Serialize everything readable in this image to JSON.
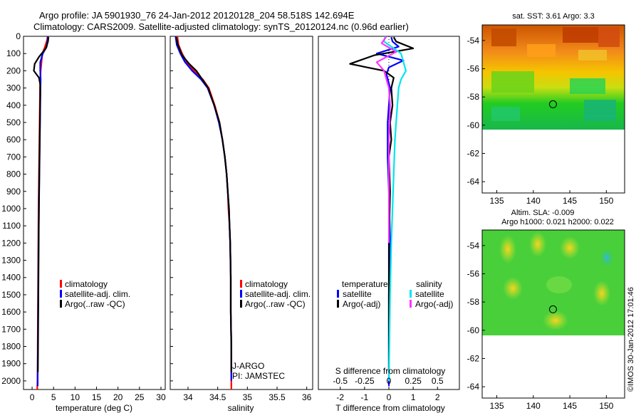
{
  "header": {
    "line1": "Argo profile: JA 5901930_76 24-Jan-2012 20120128_204 58.518S 142.694E",
    "line2": "Climatology: CARS2009. Satellite-adjusted climatology: synTS_20120124.nc (0.96d earlier)"
  },
  "colors": {
    "climatology": "#ff0000",
    "satellite": "#0000ff",
    "argo": "#000000",
    "salinity_satellite": "#00e5ee",
    "salinity_argo": "#ff33ff"
  },
  "chart_data": [
    {
      "type": "line",
      "name": "temperature-profile",
      "xlabel": "temperature (deg C)",
      "ylabel": "",
      "xlim": [
        -2,
        31
      ],
      "ylim": [
        2050,
        0
      ],
      "xticks": [
        "0",
        "5",
        "10",
        "15",
        "20",
        "25",
        "30"
      ],
      "xtick_values": [
        0,
        5,
        10,
        15,
        20,
        25,
        30
      ],
      "yticks": [
        "0",
        "100",
        "200",
        "300",
        "400",
        "500",
        "600",
        "700",
        "800",
        "900",
        "1000",
        "1100",
        "1200",
        "1300",
        "1400",
        "1500",
        "1600",
        "1700",
        "1800",
        "1900",
        "2000"
      ],
      "ytick_values": [
        0,
        100,
        200,
        300,
        400,
        500,
        600,
        700,
        800,
        900,
        1000,
        1100,
        1200,
        1300,
        1400,
        1500,
        1600,
        1700,
        1800,
        1900,
        2000
      ],
      "legend": [
        "climatology",
        "satellite-adj. clim.",
        "Argo(..raw -QC)"
      ],
      "series": [
        {
          "name": "climatology",
          "color": "#ff0000",
          "x": [
            3.6,
            3.5,
            3.0,
            2.4,
            2.2,
            2.0,
            1.9,
            1.85,
            1.8,
            1.75,
            1.7,
            1.65,
            1.6,
            1.5,
            1.45,
            1.4,
            1.35,
            1.3,
            1.3,
            1.25,
            1.2,
            1.2
          ],
          "y": [
            0,
            20,
            60,
            100,
            150,
            200,
            250,
            300,
            400,
            500,
            600,
            700,
            800,
            1000,
            1200,
            1400,
            1600,
            1800,
            1900,
            2000,
            2040,
            2050
          ]
        },
        {
          "name": "satellite-adj. clim.",
          "color": "#0000ff",
          "x": [
            3.7,
            3.6,
            3.4,
            2.5,
            1.9,
            1.9,
            2.0,
            1.95,
            1.9,
            1.85,
            1.8,
            1.75,
            1.7,
            1.6,
            1.5,
            1.45,
            1.4,
            1.35,
            1.3,
            1.3,
            1.3
          ],
          "y": [
            0,
            20,
            60,
            100,
            150,
            200,
            250,
            300,
            400,
            500,
            600,
            700,
            800,
            1000,
            1200,
            1400,
            1600,
            1800,
            1900,
            2000,
            2030
          ]
        },
        {
          "name": "Argo",
          "color": "#000000",
          "x": [
            3.8,
            3.7,
            3.2,
            1.6,
            0.6,
            0.4,
            1.6,
            1.9,
            1.9,
            1.85,
            1.8,
            1.75,
            1.7,
            1.6,
            1.55,
            1.5,
            1.45,
            1.4,
            1.35
          ],
          "y": [
            5,
            30,
            70,
            120,
            160,
            200,
            240,
            280,
            350,
            450,
            550,
            650,
            750,
            950,
            1150,
            1350,
            1550,
            1750,
            1950
          ]
        }
      ]
    },
    {
      "type": "line",
      "name": "salinity-profile",
      "xlabel": "salinity",
      "ylabel": "",
      "xlim": [
        33.7,
        36.1
      ],
      "ylim": [
        2050,
        0
      ],
      "xticks": [
        "34",
        "34.5",
        "35",
        "35.5",
        "36"
      ],
      "xtick_values": [
        34,
        34.5,
        35,
        35.5,
        36
      ],
      "legend": [
        "climatology",
        "satellite-adj. clim.",
        "Argo(..raw -QC)"
      ],
      "annotations": [
        "J-ARGO",
        "PI: JAMSTEC"
      ],
      "series": [
        {
          "name": "climatology",
          "color": "#ff0000",
          "x": [
            33.82,
            33.84,
            33.9,
            33.98,
            34.1,
            34.25,
            34.35,
            34.45,
            34.53,
            34.58,
            34.62,
            34.65,
            34.67,
            34.68,
            34.7,
            34.71,
            34.72,
            34.72,
            34.73,
            34.73,
            34.73
          ],
          "y": [
            0,
            50,
            100,
            150,
            200,
            250,
            300,
            400,
            500,
            600,
            700,
            800,
            900,
            1000,
            1100,
            1200,
            1400,
            1600,
            1800,
            2000,
            2050
          ]
        },
        {
          "name": "satellite-adj. clim.",
          "color": "#0000ff",
          "x": [
            33.79,
            33.81,
            33.87,
            33.95,
            34.07,
            34.22,
            34.33,
            34.44,
            34.52,
            34.58,
            34.62,
            34.65,
            34.67,
            34.69,
            34.7,
            34.71,
            34.72,
            34.72,
            34.73,
            34.73
          ],
          "y": [
            0,
            50,
            100,
            150,
            200,
            250,
            300,
            400,
            500,
            600,
            700,
            800,
            900,
            1000,
            1100,
            1200,
            1400,
            1600,
            1800,
            2000
          ]
        },
        {
          "name": "Argo",
          "color": "#000000",
          "x": [
            33.8,
            33.83,
            33.9,
            34.02,
            34.14,
            34.24,
            34.34,
            34.44,
            34.53,
            34.58,
            34.62,
            34.65,
            34.67,
            34.69,
            34.7,
            34.71,
            34.72,
            34.72,
            34.73,
            34.73
          ],
          "y": [
            5,
            50,
            110,
            160,
            200,
            250,
            300,
            400,
            500,
            600,
            700,
            800,
            900,
            1000,
            1100,
            1200,
            1400,
            1600,
            1800,
            1950
          ]
        }
      ]
    },
    {
      "type": "line",
      "name": "difference-profile",
      "xlabel": "T difference from climatology",
      "top_xlabel": "S difference from climatology",
      "xlim": [
        -2.9,
        2.9
      ],
      "ylim": [
        2050,
        0
      ],
      "xticks": [
        "-2",
        "-1",
        "0",
        "1",
        "2"
      ],
      "xtick_values": [
        -2,
        -1,
        0,
        1,
        2
      ],
      "top_xticks": [
        "-0.5",
        "-0.25",
        "0",
        "0.25",
        "0.5"
      ],
      "top_xtick_positions": [
        -2,
        -1,
        0,
        1,
        2
      ],
      "legend_titles": [
        "temperature",
        "salinity"
      ],
      "legend": [
        "satellite",
        "Argo(-adj)",
        "satellite",
        "Argo(-adj)"
      ],
      "series": [
        {
          "name": "T satellite",
          "color": "#0000ff",
          "x": [
            0.1,
            0.15,
            0.4,
            -0.5,
            0.6,
            0.0,
            -0.1,
            0.05,
            0.0,
            -0.05,
            -0.05,
            0.0,
            0.05,
            0.0,
            0.0,
            0.0
          ],
          "y": [
            5,
            30,
            60,
            100,
            140,
            180,
            220,
            300,
            400,
            500,
            700,
            900,
            1200,
            1500,
            1800,
            2030
          ]
        },
        {
          "name": "T Argo(-adj)",
          "color": "#000000",
          "x": [
            0.2,
            0.3,
            1.0,
            -0.6,
            -1.6,
            -0.2,
            0.2,
            0.1,
            0.15,
            0.05,
            0.1,
            0.0,
            0.05,
            0.0,
            0.0,
            0.0
          ],
          "y": [
            5,
            30,
            70,
            110,
            160,
            200,
            240,
            300,
            400,
            500,
            600,
            700,
            900,
            1200,
            1600,
            1950
          ]
        },
        {
          "name": "S satellite",
          "color": "#00e5ee",
          "x": [
            -0.15,
            -0.2,
            0.5,
            0.6,
            0.7,
            0.5,
            0.4,
            0.35,
            0.3,
            0.25,
            0.2,
            0.15,
            0.1,
            0.05,
            0.0
          ],
          "y": [
            0,
            30,
            100,
            150,
            200,
            250,
            300,
            400,
            500,
            600,
            800,
            1000,
            1200,
            1500,
            2000
          ]
        },
        {
          "name": "S Argo(-adj)",
          "color": "#ff33ff",
          "x": [
            -0.1,
            -0.3,
            0.3,
            -0.5,
            -0.2,
            0.0,
            0.05,
            0.0,
            0.0,
            0.0
          ],
          "y": [
            0,
            40,
            90,
            150,
            200,
            300,
            400,
            600,
            900,
            1200
          ]
        }
      ]
    },
    {
      "type": "heatmap",
      "name": "sst-map",
      "title": "sat. SST: 3.61  Argo: 3.3",
      "xlim": [
        133,
        152.5
      ],
      "ylim": [
        -64.8,
        -52.9
      ],
      "xticks": [
        "135",
        "140",
        "145",
        "150"
      ],
      "xtick_values": [
        135,
        140,
        145,
        150
      ],
      "yticks": [
        "-54",
        "-56",
        "-58",
        "-60",
        "-62",
        "-64"
      ],
      "ytick_values": [
        -54,
        -56,
        -58,
        -60,
        -62,
        -64
      ],
      "marker": [
        142.694,
        -58.518
      ],
      "data_extent_lat": [
        -60,
        -52.9
      ]
    },
    {
      "type": "heatmap",
      "name": "sla-map",
      "title": "Altim. SLA: -0.009",
      "subtitle": "Argo h1000: 0.021  h2000: 0.022",
      "xlim": [
        133,
        152.5
      ],
      "ylim": [
        -64.8,
        -52.9
      ],
      "xticks": [
        "135",
        "140",
        "145",
        "150"
      ],
      "xtick_values": [
        135,
        140,
        145,
        150
      ],
      "yticks": [
        "-54",
        "-56",
        "-58",
        "-60",
        "-62",
        "-64"
      ],
      "ytick_values": [
        -54,
        -56,
        -58,
        -60,
        -62,
        -64
      ],
      "marker": [
        142.694,
        -58.518
      ],
      "data_extent_lat": [
        -60,
        -52.9
      ]
    }
  ],
  "footer": {
    "watermark": "©IMOS 30-Jan-2012 17:01:46"
  }
}
